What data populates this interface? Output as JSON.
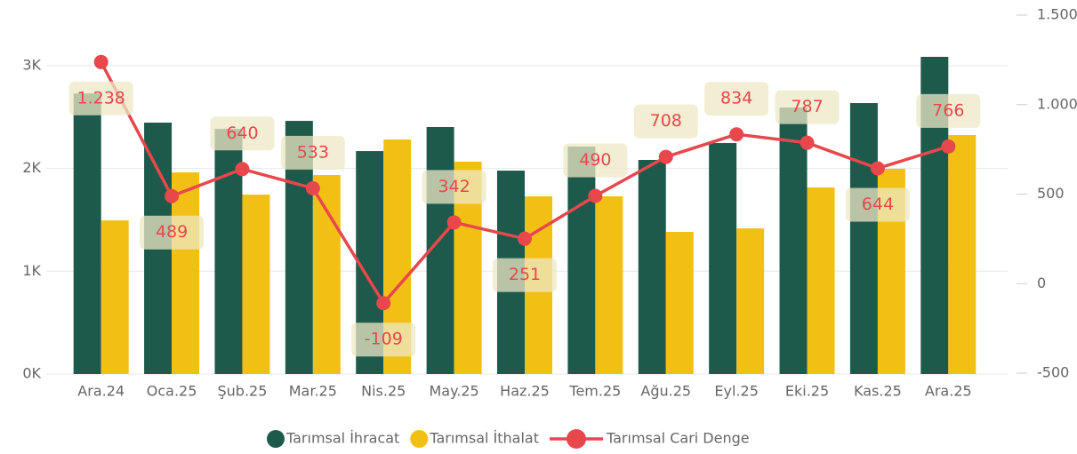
{
  "chart_data": {
    "type": "bar_line",
    "categories": [
      "Ara.24",
      "Oca.25",
      "Şub.25",
      "Mar.25",
      "Nis.25",
      "May.25",
      "Haz.25",
      "Tem.25",
      "Ağu.25",
      "Eyl.25",
      "Eki.25",
      "Kas.25",
      "Ara.25"
    ],
    "series": [
      {
        "name": "Tarımsal İhracat",
        "color": "#1d5a4c",
        "type": "bar",
        "values": [
          2730,
          2446,
          2385,
          2463,
          2169,
          2403,
          1979,
          2213,
          2083,
          2247,
          2593,
          2636,
          3086
        ]
      },
      {
        "name": "Tarımsal İthalat",
        "color": "#f2c014",
        "type": "bar",
        "values": [
          1495,
          1962,
          1746,
          1936,
          2282,
          2066,
          1729,
          1729,
          1383,
          1417,
          1815,
          1997,
          2325
        ]
      },
      {
        "name": "Tarımsal Cari Denge",
        "color": "#e8474c",
        "type": "line",
        "axis": "y2",
        "values": [
          1238,
          489,
          640,
          533,
          -109,
          342,
          251,
          490,
          708,
          834,
          787,
          644,
          766
        ],
        "value_labels": [
          "1.238",
          "489",
          "640",
          "533",
          "-109",
          "342",
          "251",
          "490",
          "708",
          "834",
          "787",
          "644",
          "766"
        ]
      }
    ],
    "ylim": [
      0,
      3492
    ],
    "yticks": [
      {
        "value": 0,
        "label": "0K"
      },
      {
        "value": 1000,
        "label": "1K"
      },
      {
        "value": 2000,
        "label": "2K"
      },
      {
        "value": 3000,
        "label": "3K"
      }
    ],
    "y2lim": [
      -500,
      1500
    ],
    "y2ticks": [
      {
        "value": 1500,
        "label": "1.500"
      },
      {
        "value": 1000,
        "label": "1.000"
      },
      500,
      0,
      -500
    ],
    "grid": true,
    "legend": "bottom"
  }
}
